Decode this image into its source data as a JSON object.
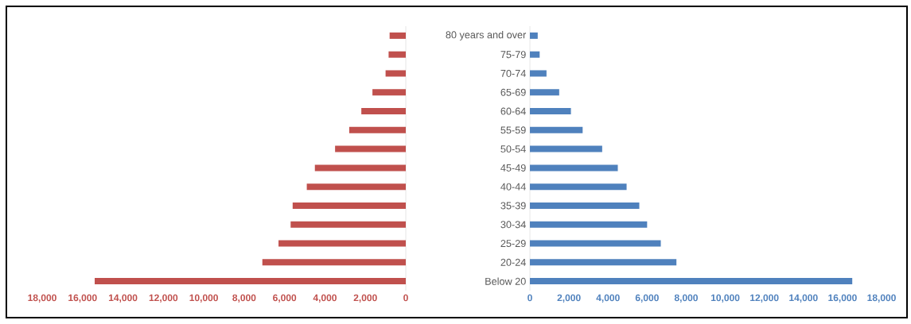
{
  "chart_data": [
    {
      "type": "bar",
      "orientation": "horizontal",
      "tick_labels": "x",
      "xlim": [
        18000,
        0
      ],
      "xticks": [
        {
          "value": 18000,
          "label": "18,000"
        },
        {
          "value": 16000,
          "label": "16,000"
        },
        {
          "value": 14000,
          "label": "14,000"
        },
        {
          "value": 12000,
          "label": "12,000"
        },
        {
          "value": 10000,
          "label": "10,000"
        },
        {
          "value": 8000,
          "label": "8,000"
        },
        {
          "value": 6000,
          "label": "6,000"
        },
        {
          "value": 4000,
          "label": "4,000"
        },
        {
          "value": 2000,
          "label": "2,000"
        },
        0
      ],
      "series": [
        {
          "color": "#c0504d",
          "values": [
            800,
            850,
            1000,
            1650,
            2200,
            2800,
            3500,
            4500,
            4900,
            5600,
            5700,
            6300,
            7100,
            15400
          ]
        }
      ]
    },
    {
      "type": "bar",
      "orientation": "horizontal",
      "categories": [
        "80 years and over",
        "75-79",
        "70-74",
        "65-69",
        "60-64",
        "55-59",
        "50-54",
        "45-49",
        "40-44",
        "35-39",
        "30-34",
        "25-29",
        "20-24",
        "Below 20"
      ],
      "xlim": [
        0,
        18000
      ],
      "xticks": [
        0,
        {
          "value": 2000,
          "label": "2,000"
        },
        {
          "value": 4000,
          "label": "4,000"
        },
        {
          "value": 6000,
          "label": "6,000"
        },
        {
          "value": 8000,
          "label": "8,000"
        },
        {
          "value": 10000,
          "label": "10,000"
        },
        {
          "value": 12000,
          "label": "12,000"
        },
        {
          "value": 14000,
          "label": "14,000"
        },
        {
          "value": 16000,
          "label": "16,000"
        },
        {
          "value": 18000,
          "label": "18,000"
        }
      ],
      "series": [
        {
          "color": "#4f81bd",
          "values": [
            400,
            500,
            850,
            1500,
            2100,
            2700,
            3700,
            4500,
            4950,
            5600,
            6000,
            6700,
            7500,
            16500
          ]
        }
      ]
    }
  ]
}
